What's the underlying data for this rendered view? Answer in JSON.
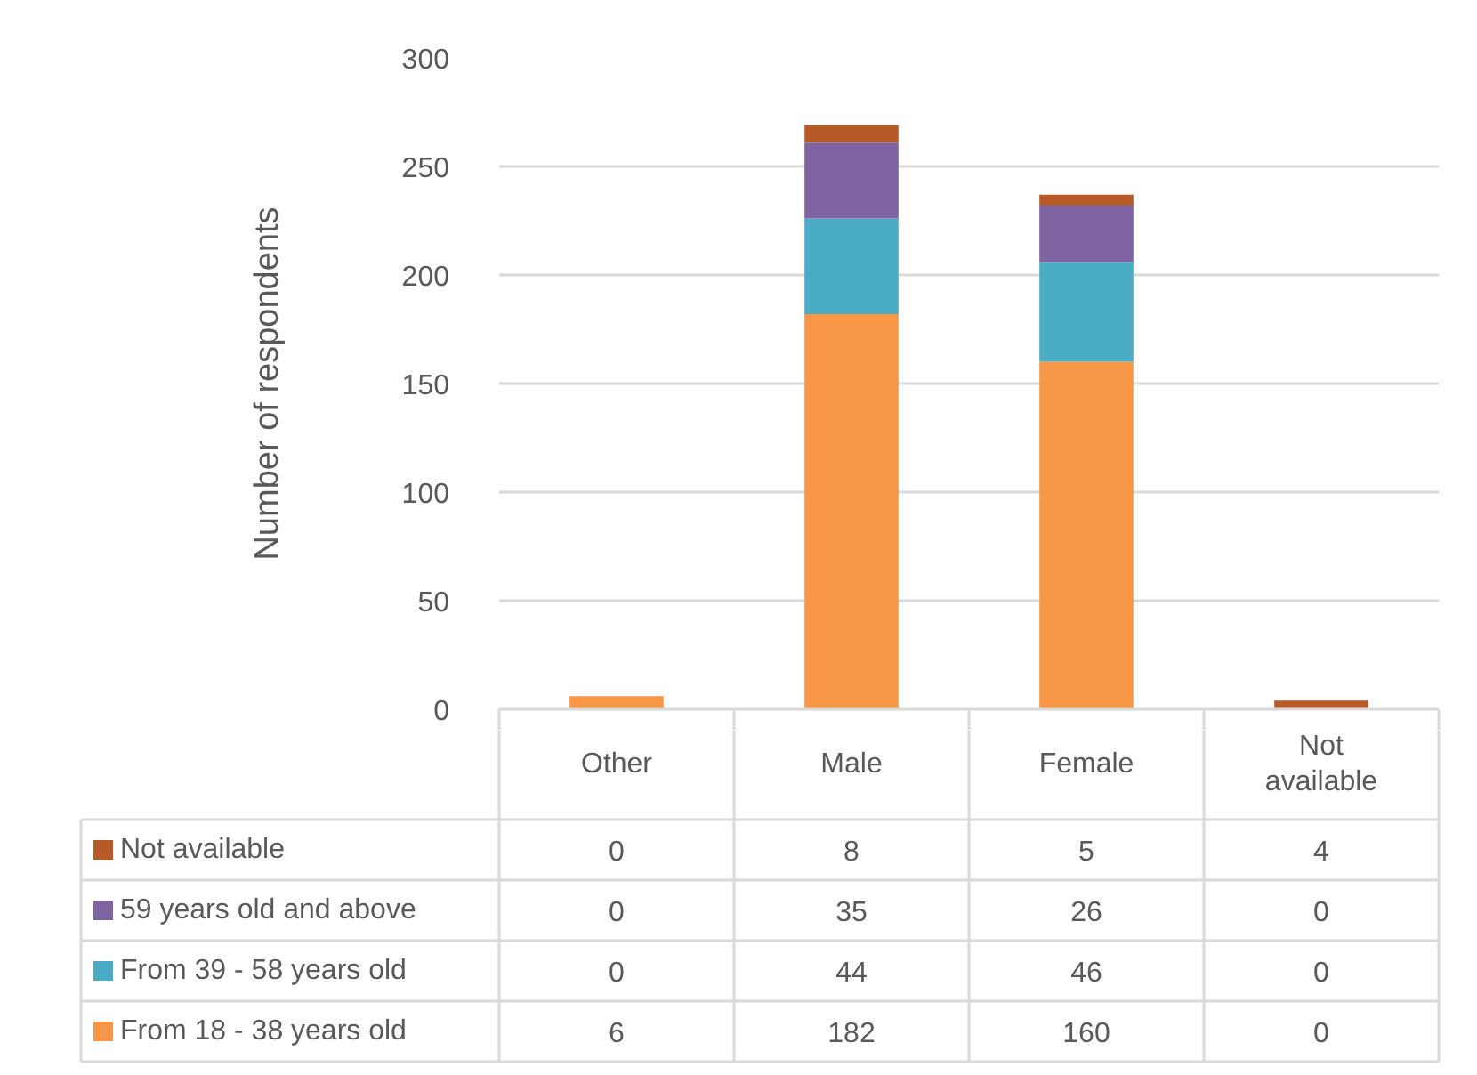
{
  "chart_data": {
    "type": "bar",
    "stacked": true,
    "ylabel": "Number of respondents",
    "categories": [
      "Other",
      "Male",
      "Female",
      "Not available"
    ],
    "series": [
      {
        "name": "From 18 - 38 years old",
        "color": "#f79646",
        "values": [
          6,
          182,
          160,
          0
        ]
      },
      {
        "name": "From 39 - 58 years old",
        "color": "#4bacc6",
        "values": [
          0,
          44,
          46,
          0
        ]
      },
      {
        "name": "59 years old and above",
        "color": "#8064a2",
        "values": [
          0,
          35,
          26,
          0
        ]
      },
      {
        "name": "Not available",
        "color": "#b65a28",
        "values": [
          0,
          8,
          5,
          4
        ]
      }
    ],
    "ylim": [
      0,
      300
    ],
    "yticks": [
      0,
      50,
      100,
      150,
      200,
      250,
      300
    ],
    "grid": "y",
    "legend": "bottom",
    "data_labels": true
  }
}
